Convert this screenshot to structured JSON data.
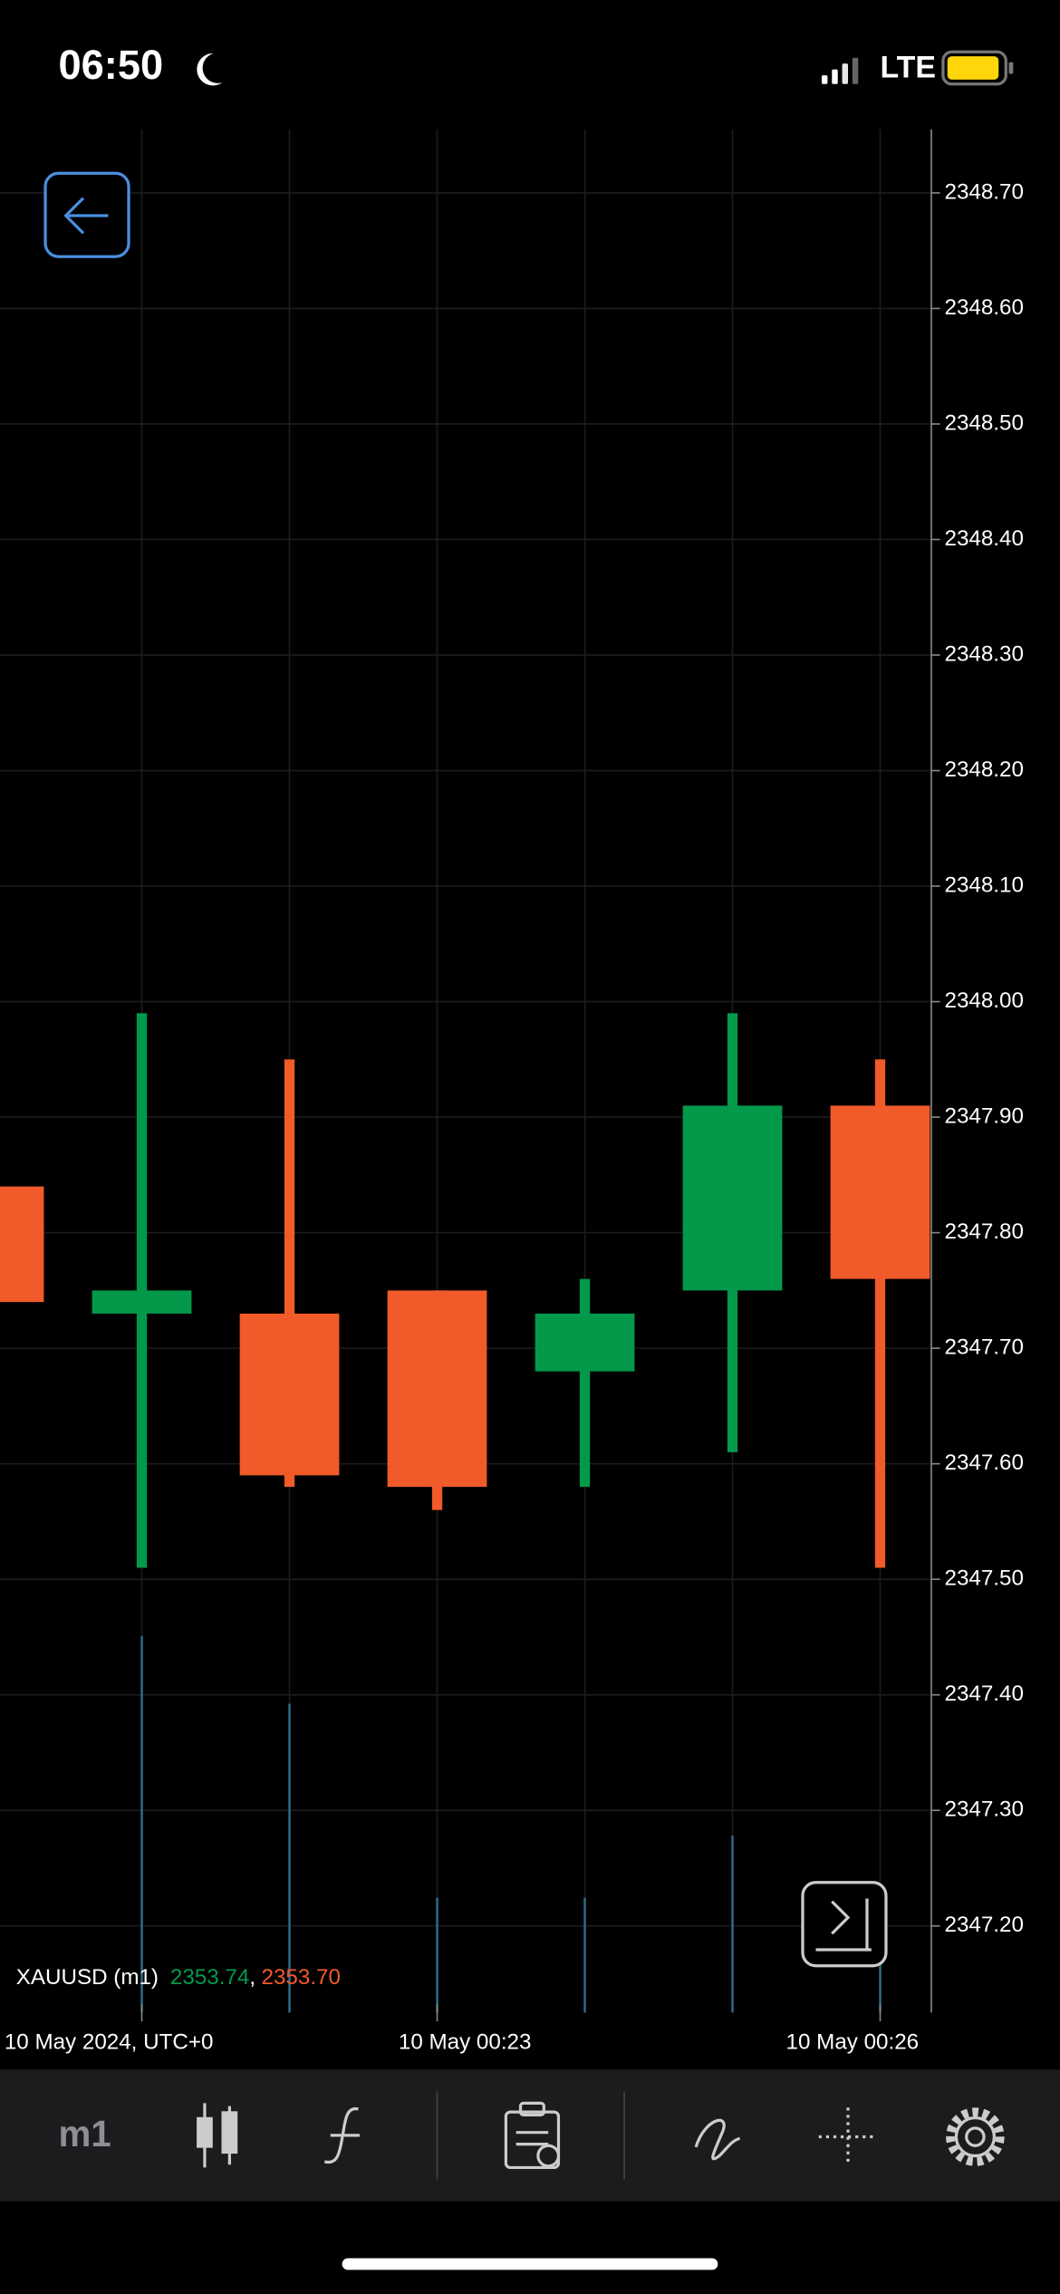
{
  "status_bar": {
    "time": "06:50",
    "network": "LTE"
  },
  "chart_data": {
    "type": "candlestick",
    "categories": [
      null,
      "10 May 2024, UTC+0",
      null,
      "10 May 00:23",
      null,
      null,
      "10 May 00:26"
    ],
    "series": [
      {
        "name": "XAUUSD (m1)",
        "up_color": "#03994b",
        "down_color": "#f15a29",
        "open": [
          2347.84,
          2347.73,
          2347.73,
          2347.75,
          2347.68,
          2347.75,
          2347.91
        ],
        "high": [
          2347.84,
          2347.99,
          2347.95,
          2347.75,
          2347.76,
          2347.99,
          2347.95
        ],
        "low": [
          2347.74,
          2347.51,
          2347.58,
          2347.56,
          2347.58,
          2347.61,
          2347.51
        ],
        "close": [
          2347.74,
          2347.75,
          2347.59,
          2347.58,
          2347.73,
          2347.91,
          2347.76
        ]
      }
    ],
    "volume": {
      "color": "#2b6f8f",
      "values": [
        null,
        200,
        164,
        61,
        61,
        94,
        28
      ],
      "lim": [
        0,
        1000
      ]
    },
    "ylim": [
      2347.125,
      2348.755
    ],
    "yticks": [
      {
        "value": 2347.2,
        "label": "2347.20"
      },
      {
        "value": 2347.3,
        "label": "2347.30"
      },
      {
        "value": 2347.4,
        "label": "2347.40"
      },
      {
        "value": 2347.5,
        "label": "2347.50"
      },
      {
        "value": 2347.6,
        "label": "2347.60"
      },
      {
        "value": 2347.7,
        "label": "2347.70"
      },
      {
        "value": 2347.8,
        "label": "2347.80"
      },
      {
        "value": 2347.9,
        "label": "2347.90"
      },
      {
        "value": 2348,
        "label": "2348.00"
      },
      {
        "value": 2348.1,
        "label": "2348.10"
      },
      {
        "value": 2348.2,
        "label": "2348.20"
      },
      {
        "value": 2348.3,
        "label": "2348.30"
      },
      {
        "value": 2348.4,
        "label": "2348.40"
      },
      {
        "value": 2348.5,
        "label": "2348.50"
      },
      {
        "value": 2348.6,
        "label": "2348.60"
      },
      {
        "value": 2348.7,
        "label": "2348.70"
      }
    ],
    "grid": true
  },
  "quote": {
    "symbol": "XAUUSD (m1)",
    "bid": "2353.74",
    "separator": ",",
    "ask": "2353.70"
  },
  "toolbar": {
    "timeframe": "m1"
  }
}
